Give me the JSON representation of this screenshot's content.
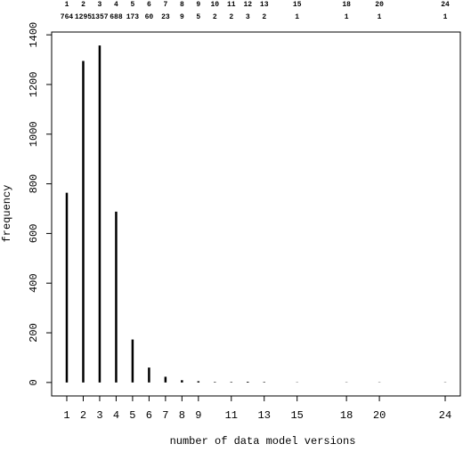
{
  "chart_data": {
    "type": "bar",
    "x_label": "number of data model versions",
    "y_label": "frequency",
    "x": [
      1,
      2,
      3,
      4,
      5,
      6,
      7,
      8,
      9,
      10,
      11,
      12,
      13,
      15,
      18,
      20,
      24
    ],
    "values": [
      764,
      1295,
      1357,
      688,
      173,
      60,
      23,
      9,
      5,
      2,
      2,
      3,
      2,
      1,
      1,
      1,
      1
    ],
    "color": "#000000",
    "xlim": [
      0.08,
      24.92
    ],
    "ylim": [
      -54.28,
      1411.28
    ],
    "xticks": [
      1,
      2,
      3,
      4,
      5,
      6,
      7,
      8,
      9,
      11,
      13,
      15,
      18,
      20,
      24
    ],
    "yticks": [
      0,
      200,
      400,
      600,
      800,
      1000,
      1200,
      1400
    ],
    "grid": false
  }
}
